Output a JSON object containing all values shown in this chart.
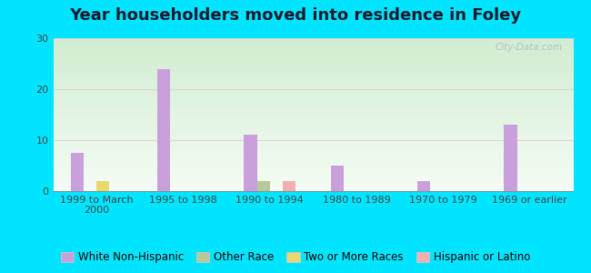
{
  "title": "Year householders moved into residence in Foley",
  "categories": [
    "1999 to March\n2000",
    "1995 to 1998",
    "1990 to 1994",
    "1980 to 1989",
    "1970 to 1979",
    "1969 or earlier"
  ],
  "series": {
    "White Non-Hispanic": [
      7.5,
      24.0,
      11.0,
      5.0,
      2.0,
      13.0
    ],
    "Other Race": [
      0.0,
      0.0,
      2.0,
      0.0,
      0.0,
      0.0
    ],
    "Two or More Races": [
      2.0,
      0.0,
      0.0,
      0.0,
      0.0,
      0.0
    ],
    "Hispanic or Latino": [
      0.0,
      0.0,
      2.0,
      0.0,
      0.0,
      0.0
    ]
  },
  "colors": {
    "White Non-Hispanic": "#c9a0dc",
    "Other Race": "#b8c898",
    "Two or More Races": "#e8d870",
    "Hispanic or Latino": "#f0b0b0"
  },
  "ylim": [
    0,
    30
  ],
  "yticks": [
    0,
    10,
    20,
    30
  ],
  "bar_width": 0.15,
  "background_outer": "#00e5ff",
  "watermark": "City-Data.com",
  "title_fontsize": 13,
  "tick_fontsize": 8,
  "legend_fontsize": 8.5
}
